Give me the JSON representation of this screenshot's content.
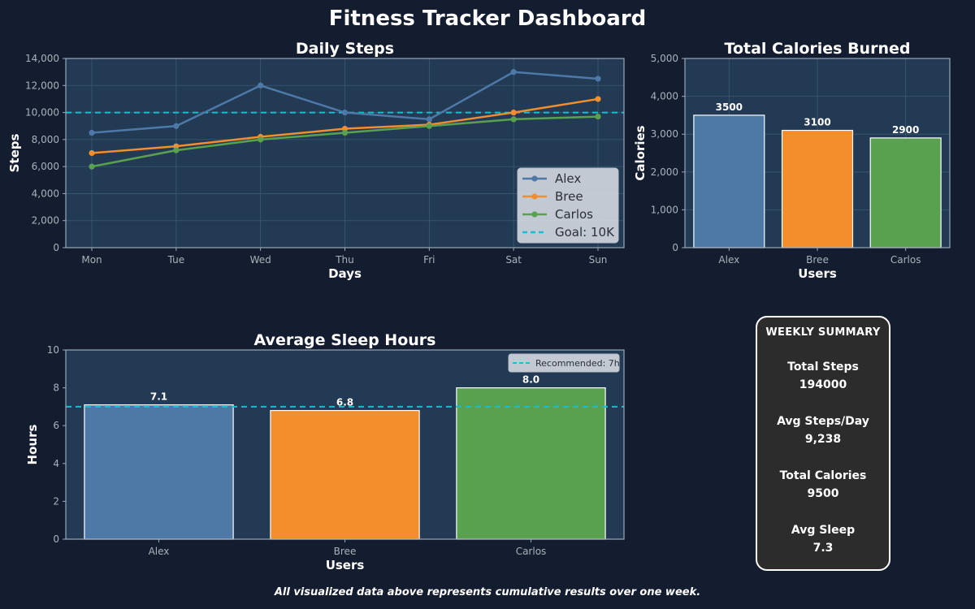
{
  "dashboard": {
    "title": "Fitness Tracker Dashboard",
    "footer": "All visualized data above represents cumulative results over one week."
  },
  "colors": {
    "alex": "#4e79a7",
    "bree": "#f28e2b",
    "carlos": "#59a14f",
    "goal": "#17becf",
    "plot_bg": "#233a55",
    "page_bg": "#141d2f"
  },
  "chart_data": [
    {
      "id": "steps",
      "type": "line",
      "title": "Daily Steps",
      "xlabel": "Days",
      "ylabel": "Steps",
      "categories": [
        "Mon",
        "Tue",
        "Wed",
        "Thu",
        "Fri",
        "Sat",
        "Sun"
      ],
      "ylim": [
        0,
        14000
      ],
      "yticks": [
        0,
        2000,
        4000,
        6000,
        8000,
        10000,
        12000,
        14000
      ],
      "ytick_labels": [
        "0",
        "2,000",
        "4,000",
        "6,000",
        "8,000",
        "10,000",
        "12,000",
        "14,000"
      ],
      "grid": true,
      "legend_position": "lower-right",
      "series": [
        {
          "name": "Alex",
          "color": "#4e79a7",
          "values": [
            8500,
            9000,
            12000,
            10000,
            9500,
            13000,
            12500
          ]
        },
        {
          "name": "Bree",
          "color": "#f28e2b",
          "values": [
            7000,
            7500,
            8200,
            8800,
            9100,
            10000,
            11000
          ]
        },
        {
          "name": "Carlos",
          "color": "#59a14f",
          "values": [
            6000,
            7200,
            8000,
            8500,
            9000,
            9500,
            9700
          ]
        }
      ],
      "reference_line": {
        "label": "Goal: 10K",
        "value": 10000,
        "color": "#17becf"
      }
    },
    {
      "id": "calories",
      "type": "bar",
      "title": "Total Calories Burned",
      "xlabel": "Users",
      "ylabel": "Calories",
      "categories": [
        "Alex",
        "Bree",
        "Carlos"
      ],
      "values": [
        3500,
        3100,
        2900
      ],
      "value_labels": [
        "3500",
        "3100",
        "2900"
      ],
      "colors": [
        "#4e79a7",
        "#f28e2b",
        "#59a14f"
      ],
      "ylim": [
        0,
        5000
      ],
      "yticks": [
        0,
        1000,
        2000,
        3000,
        4000,
        5000
      ],
      "ytick_labels": [
        "0",
        "1,000",
        "2,000",
        "3,000",
        "4,000",
        "5,000"
      ],
      "grid": true
    },
    {
      "id": "sleep",
      "type": "bar",
      "title": "Average Sleep Hours",
      "xlabel": "Users",
      "ylabel": "Hours",
      "categories": [
        "Alex",
        "Bree",
        "Carlos"
      ],
      "values": [
        7.1,
        6.8,
        8.0
      ],
      "value_labels": [
        "7.1",
        "6.8",
        "8.0"
      ],
      "colors": [
        "#4e79a7",
        "#f28e2b",
        "#59a14f"
      ],
      "ylim": [
        0,
        10
      ],
      "yticks": [
        0,
        2,
        4,
        6,
        8,
        10
      ],
      "ytick_labels": [
        "0",
        "2",
        "4",
        "6",
        "8",
        "10"
      ],
      "grid": false,
      "legend_position": "top-right",
      "reference_line": {
        "label": "Recommended: 7h",
        "value": 7,
        "color": "#17becf"
      }
    }
  ],
  "summary": {
    "heading": "WEEKLY SUMMARY",
    "items": [
      {
        "label": "Total Steps",
        "value": "194000"
      },
      {
        "label": "Avg Steps/Day",
        "value": "9,238"
      },
      {
        "label": "Total Calories",
        "value": "9500"
      },
      {
        "label": "Avg Sleep",
        "value": "7.3"
      }
    ]
  }
}
